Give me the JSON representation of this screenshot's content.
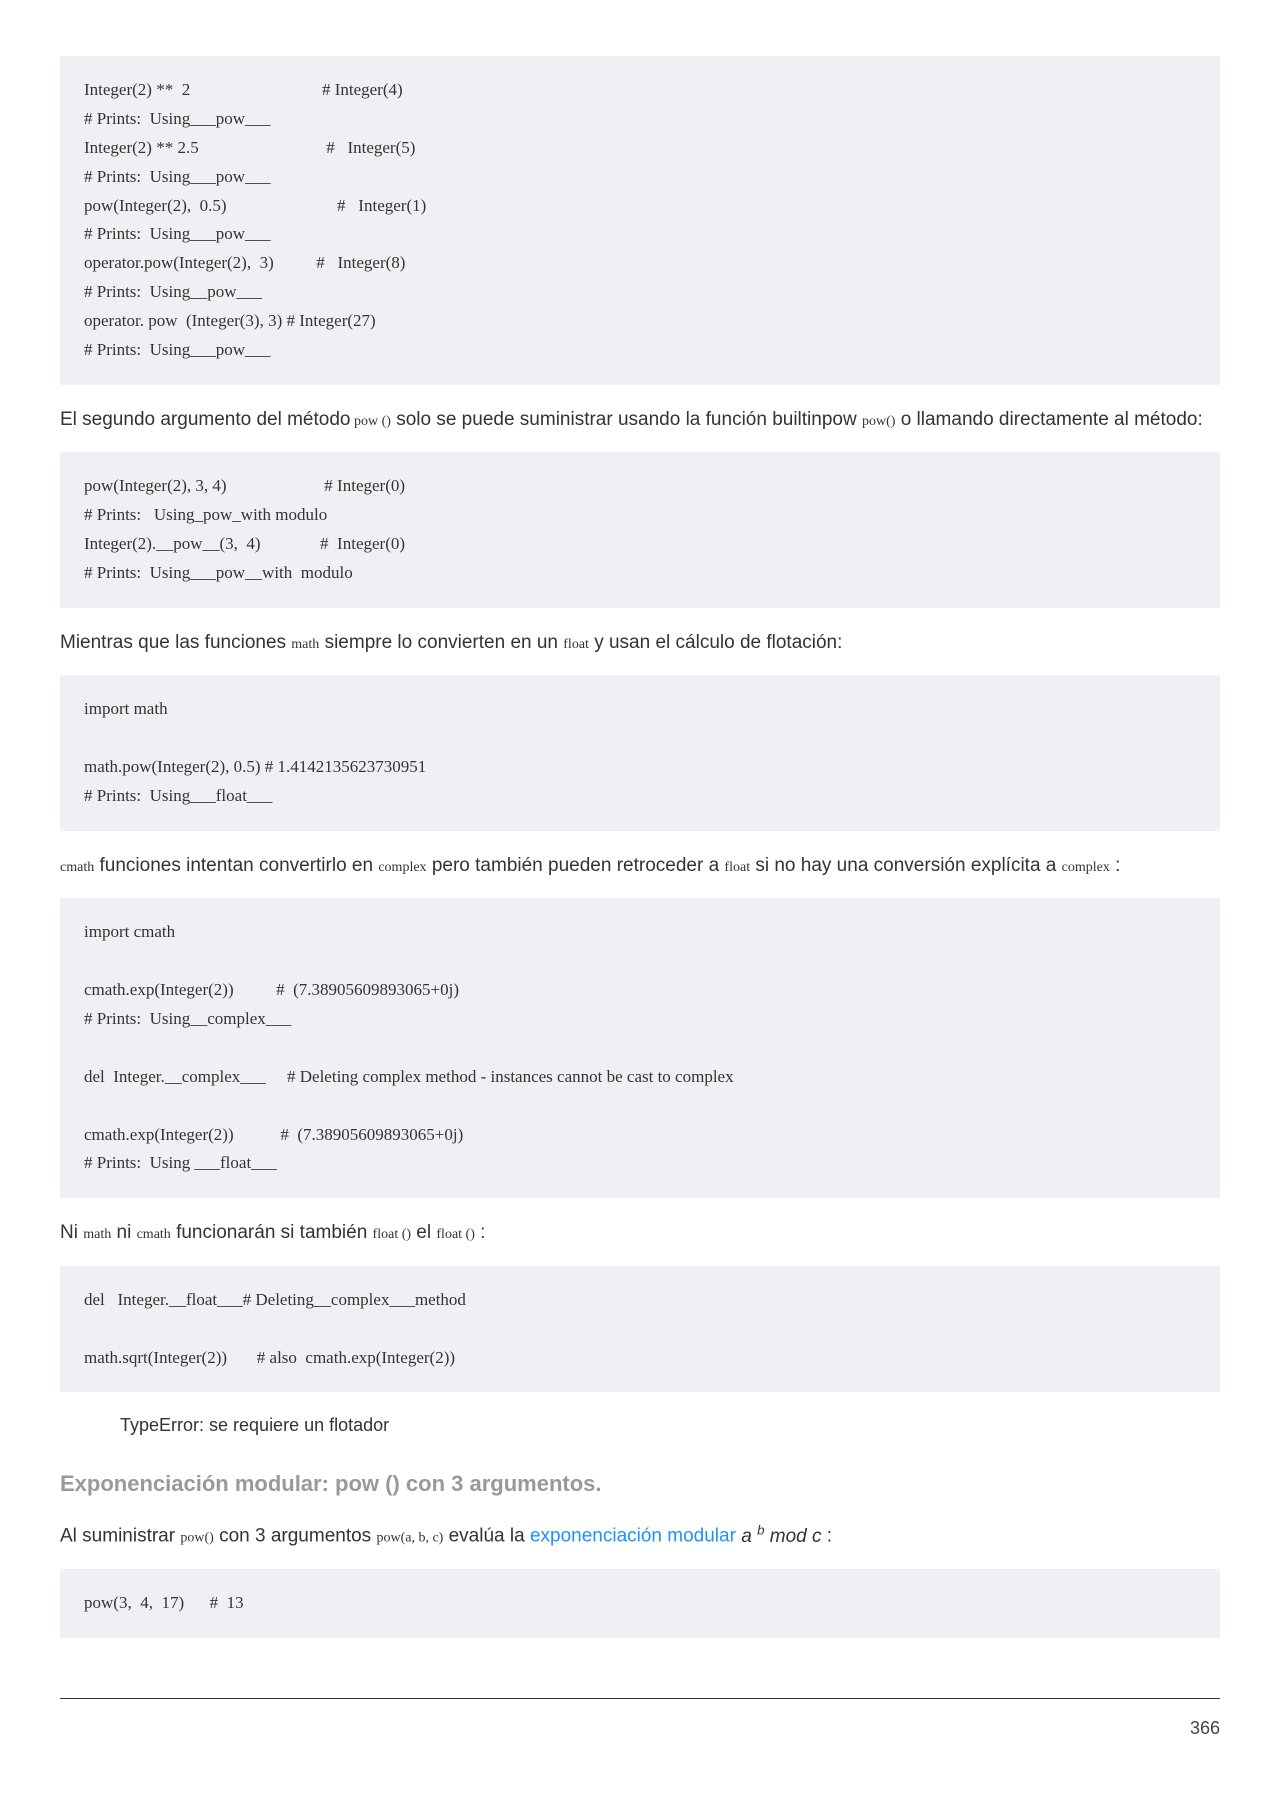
{
  "code1": "Integer(2) **  2                               # Integer(4)\n# Prints:  Using___pow___\nInteger(2) ** 2.5                              #   Integer(5)\n# Prints:  Using___pow___\npow(Integer(2),  0.5)                          #   Integer(1)\n# Prints:  Using___pow___\noperator.pow(Integer(2),  3)          #   Integer(8)\n# Prints:  Using__pow___\noperator. pow  (Integer(3), 3) # Integer(27)\n# Prints:  Using___pow___",
  "para1_a": "El segundo argumento del método",
  "para1_code1": " pow ()",
  "para1_b": " solo se puede suministrar usando la función builtinpow ",
  "para1_code2": "pow()",
  "para1_c": " o llamando directamente al método:",
  "code2": "pow(Integer(2), 3, 4)                       # Integer(0)\n# Prints:   Using_pow_with modulo\nInteger(2).__pow__(3,  4)              #  Integer(0)\n# Prints:  Using___pow__with  modulo",
  "para2_a": "Mientras que las funciones ",
  "para2_code1": "math",
  "para2_b": " siempre lo convierten en un ",
  "para2_code2": "float",
  "para2_c": " y usan el cálculo de  flotación:",
  "code3": "import math\n\nmath.pow(Integer(2), 0.5) # 1.4142135623730951\n# Prints:  Using___float___",
  "para3_code1": "cmath",
  "para3_a": " funciones intentan convertirlo en ",
  "para3_code2": "complex",
  "para3_b": " pero también pueden retroceder a ",
  "para3_code3": "float",
  "para3_c": " si no hay una conversión explícita a ",
  "para3_code4": "complex",
  "para3_d": " :",
  "code4": "import cmath\n\ncmath.exp(Integer(2))          #  (7.38905609893065+0j)\n# Prints:  Using__complex___\n\ndel  Integer.__complex___     # Deleting complex method - instances cannot be cast to complex\n\ncmath.exp(Integer(2))           #  (7.38905609893065+0j)\n# Prints:  Using ___float___",
  "para4_a": "Ni ",
  "para4_code1": "math",
  "para4_b": " ni ",
  "para4_code2": "cmath",
  "para4_c": " funcionarán si también ",
  "para4_code3": "float ()",
  "para4_d": " el ",
  "para4_code4": "float ()",
  "para4_e": " :",
  "code5": "del   Integer.__float___# Deleting__complex___method\n\nmath.sqrt(Integer(2))       # also  cmath.exp(Integer(2))",
  "error_text": "TypeError: se requiere un flotador",
  "heading": "Exponenciación modular: pow () con 3 argumentos.",
  "para5_a": "Al suministrar ",
  "para5_code1": "pow()",
  "para5_b": " con 3 argumentos ",
  "para5_code2": "pow(a, b, c)",
  "para5_c": " evalúa la ",
  "para5_link": "exponenciación modular",
  "para5_d": " ",
  "para5_ital_a": "a ",
  "para5_sup": "b",
  "para5_ital_b": " mod c",
  "para5_e": " :",
  "code6": "pow(3,  4,  17)      #  13",
  "page_number": "366"
}
